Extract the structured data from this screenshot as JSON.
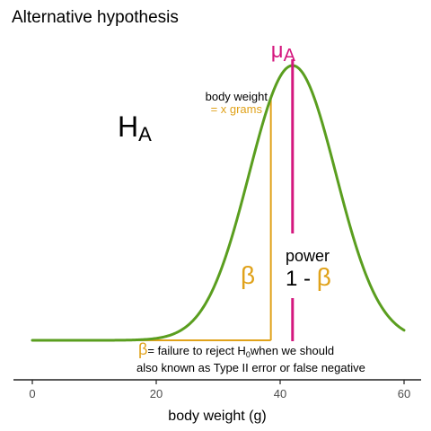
{
  "chart_data": {
    "type": "line",
    "title": "Alternative hypothesis",
    "xlabel": "body weight (g)",
    "ylabel": "",
    "xlim": [
      -3,
      63
    ],
    "ylim": [
      0,
      1
    ],
    "x_ticks": [
      0,
      20,
      40,
      60
    ],
    "x_tick_labels": [
      "0",
      "20",
      "40",
      "60"
    ],
    "grid": false,
    "legend": "none",
    "series": [
      {
        "mean": 42,
        "sd": 7,
        "color": "#5a9e1f"
      }
    ],
    "critical_value_x": 38.5,
    "beta_baseline_start_x": 15,
    "mu_x": 42,
    "colors": {
      "curve": "#5a9e1f",
      "mu": "#d4177e",
      "beta": "#e0a21a",
      "text": "#000000",
      "axis": "#222222",
      "tick_label": "#4d4d4d"
    },
    "labels": {
      "hypothesis_main": "H",
      "hypothesis_sub": "A",
      "mu_main": "μ",
      "mu_sub": "A",
      "crit_line1": "body weight",
      "crit_line2": "= x grams",
      "beta_symbol": "β",
      "power_word": "power",
      "power_prefix": "1 - ",
      "power_beta": "β",
      "note_beta": "β",
      "note_line1_a": "= failure to reject H",
      "note_line1_sub": "0",
      "note_line1_b": "when we should",
      "note_line2": "also known as Type II error or false negative"
    }
  }
}
